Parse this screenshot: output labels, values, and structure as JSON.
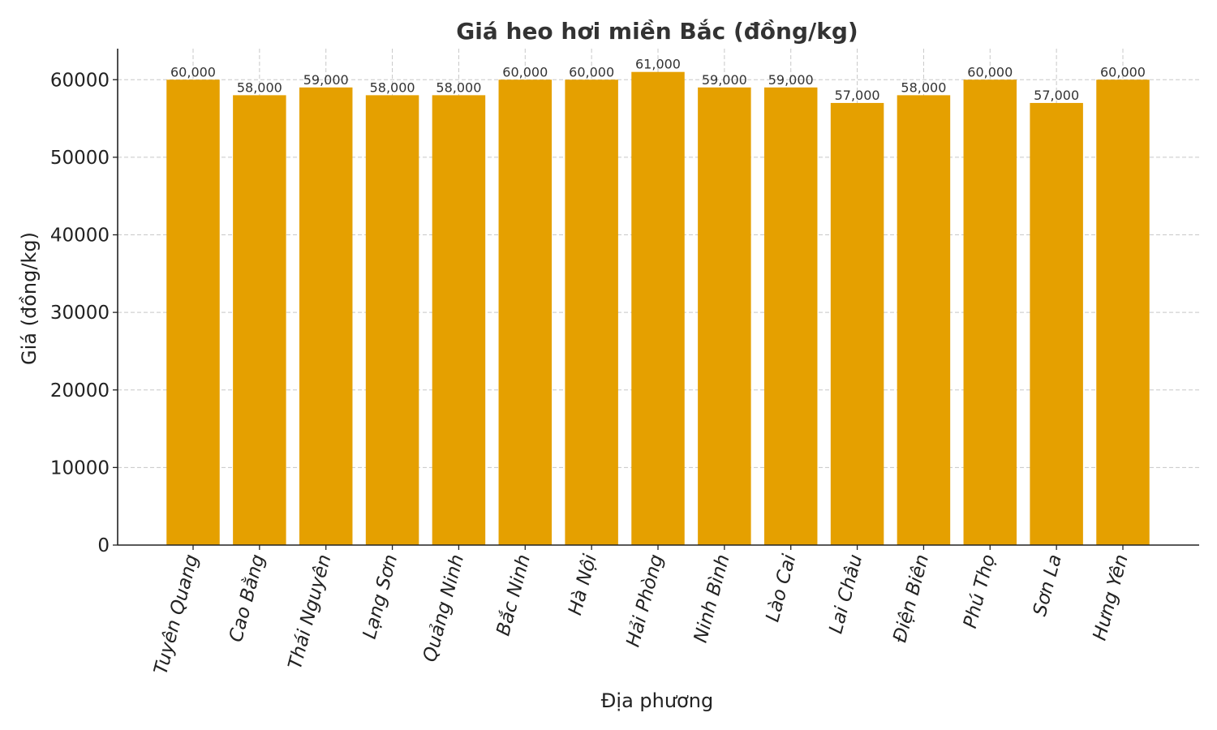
{
  "chart_data": {
    "type": "bar",
    "title": "Giá heo hơi miền Bắc (đồng/kg)",
    "xlabel": "Địa phương",
    "ylabel": "Giá (đồng/kg)",
    "categories": [
      "Tuyên Quang",
      "Cao Bằng",
      "Thái Nguyên",
      "Lạng Sơn",
      "Quảng Ninh",
      "Bắc Ninh",
      "Hà Nội",
      "Hải Phòng",
      "Ninh Bình",
      "Lào Cai",
      "Lai Châu",
      "Điện Biên",
      "Phú Thọ",
      "Sơn La",
      "Hưng Yên"
    ],
    "values": [
      60000,
      58000,
      59000,
      58000,
      58000,
      60000,
      60000,
      61000,
      59000,
      59000,
      57000,
      58000,
      60000,
      57000,
      60000
    ],
    "value_labels": [
      "60,000",
      "58,000",
      "59,000",
      "58,000",
      "58,000",
      "60,000",
      "60,000",
      "61,000",
      "59,000",
      "59,000",
      "57,000",
      "58,000",
      "60,000",
      "57,000",
      "60,000"
    ],
    "yticks": [
      0,
      10000,
      20000,
      30000,
      40000,
      50000,
      60000
    ],
    "ytick_labels": [
      "0",
      "10000",
      "20000",
      "30000",
      "40000",
      "50000",
      "60000"
    ],
    "ylim": [
      0,
      64000
    ],
    "grid": true,
    "legend": "none",
    "bar_color": "#E5A000"
  }
}
